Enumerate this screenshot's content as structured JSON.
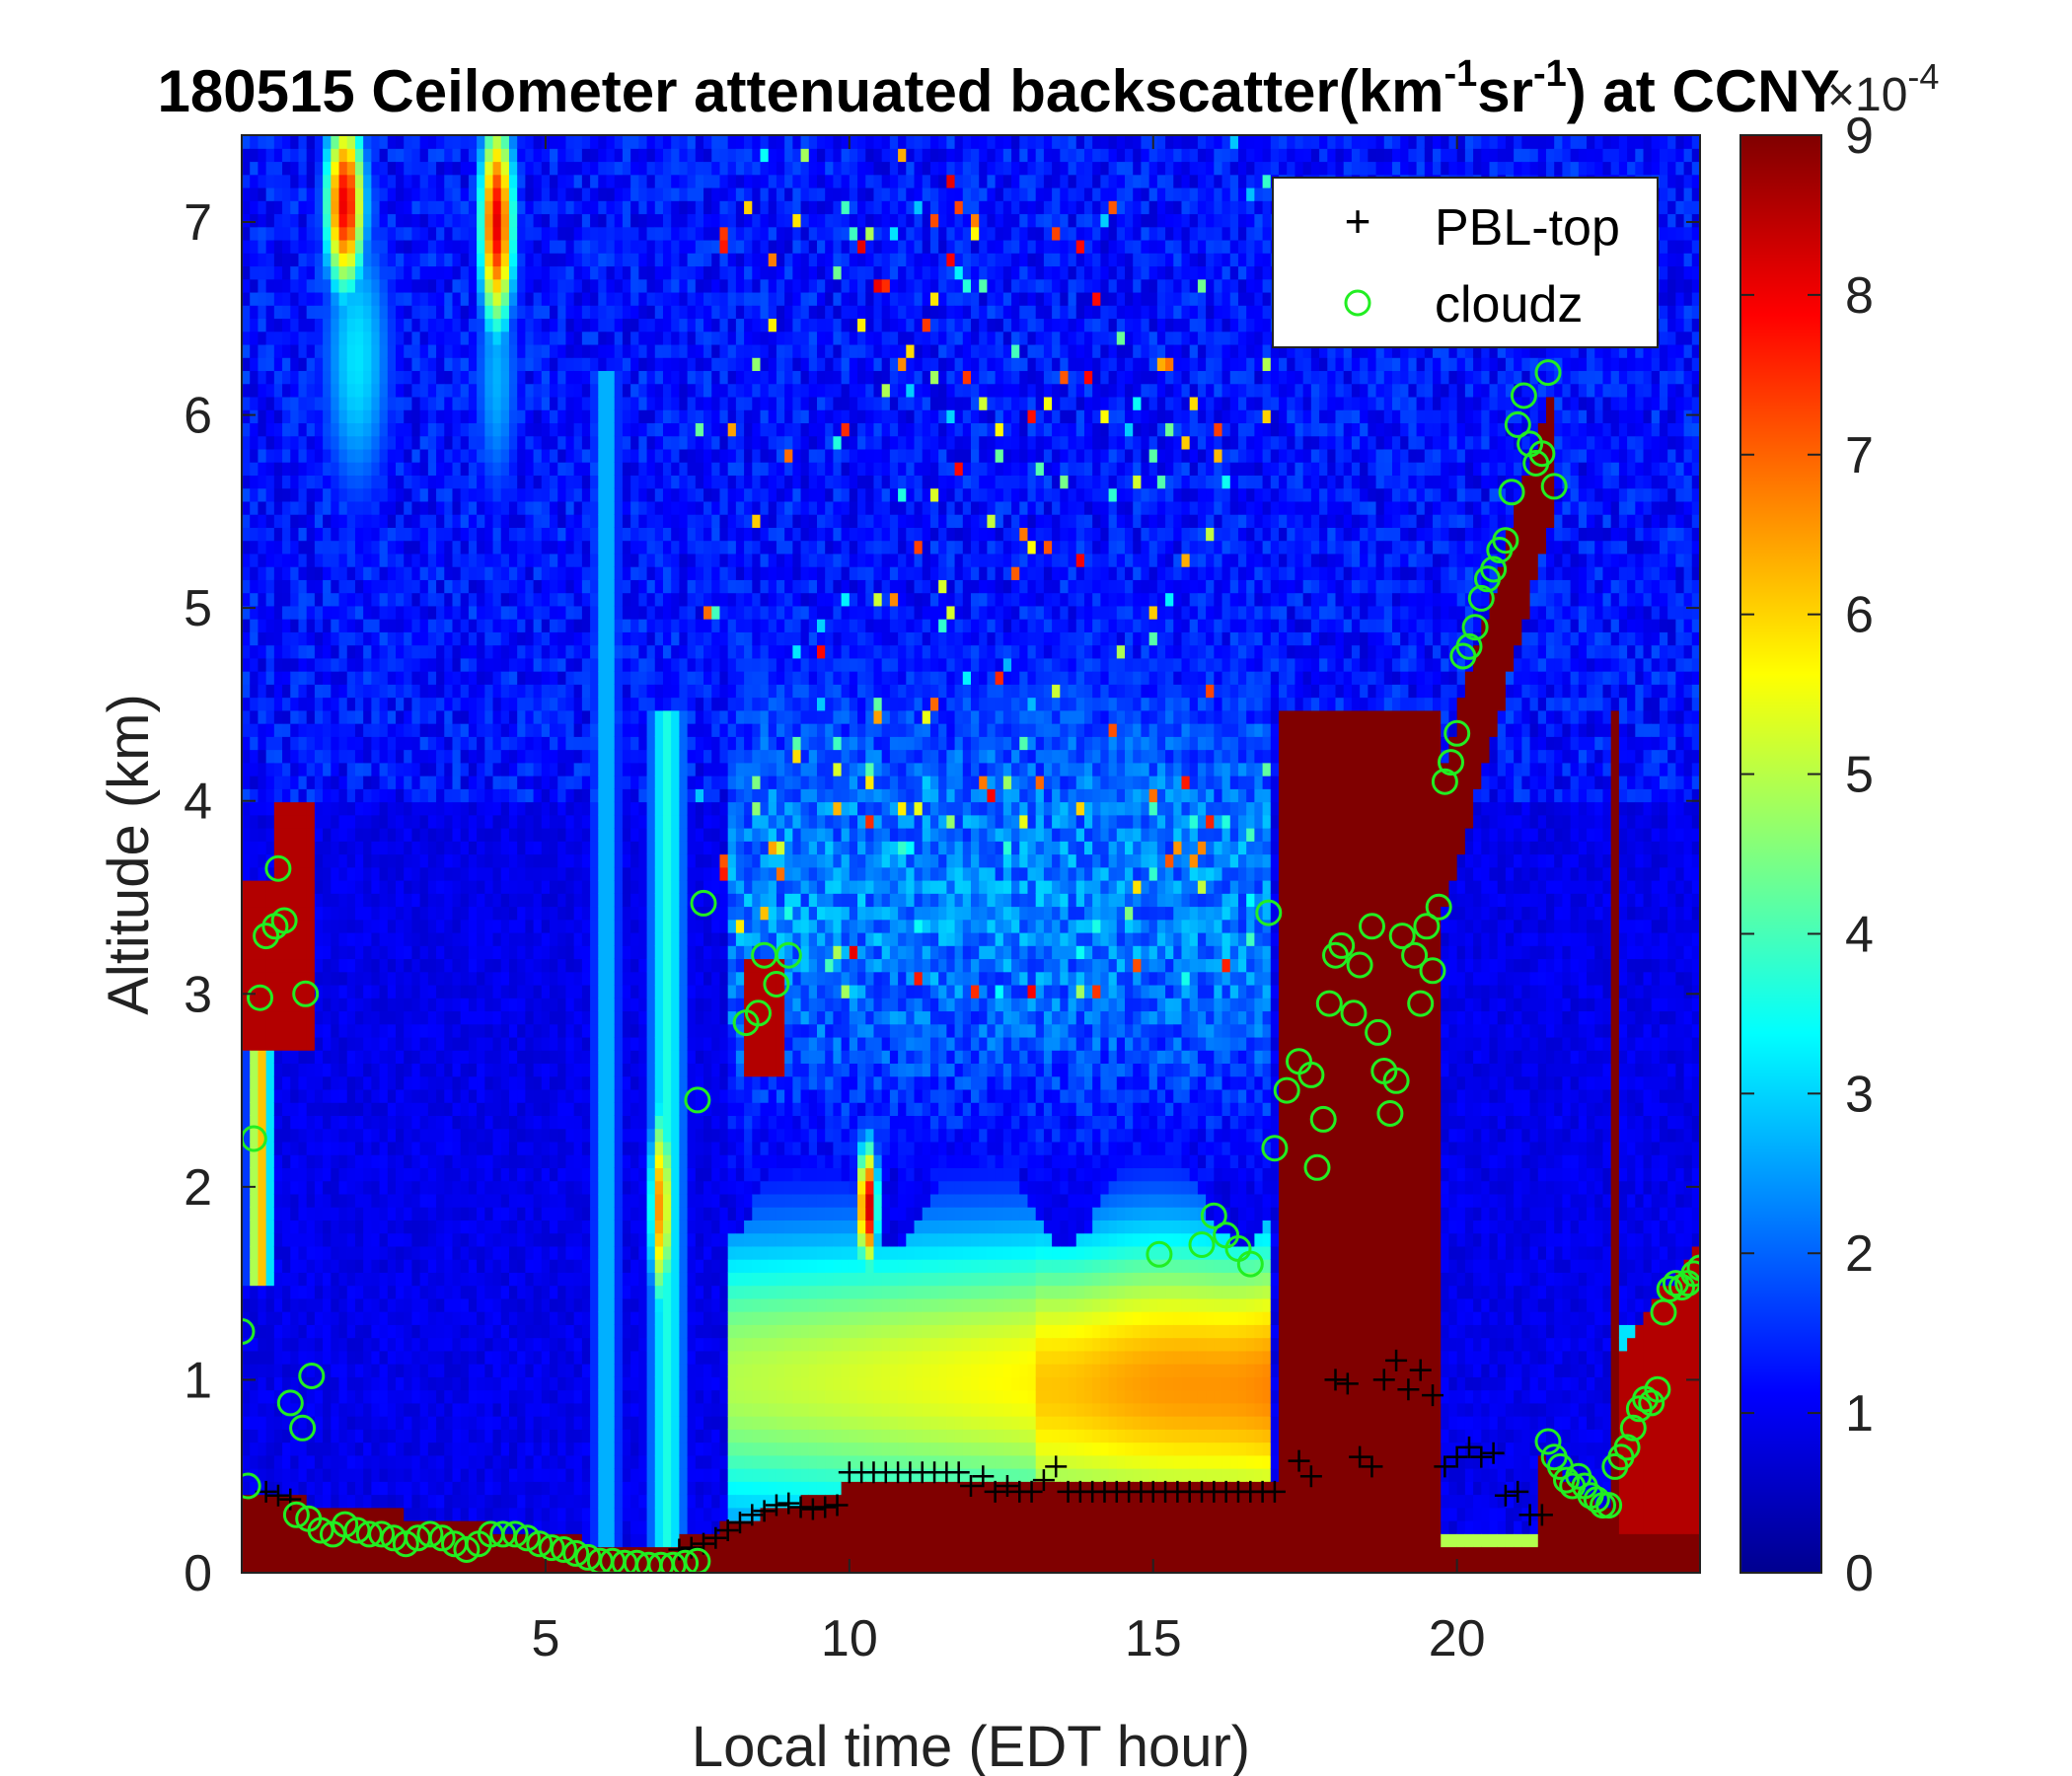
{
  "chart_data": {
    "type": "heatmap",
    "title_parts": {
      "prefix": "180515 Ceilometer attenuated backscatter(km",
      "sup1": "-1",
      "mid": "sr",
      "sup2": "-1",
      "suffix": ") at CCNY"
    },
    "xlabel": "Local time (EDT hour)",
    "ylabel": "Altitude (km)",
    "xlim": [
      0,
      24
    ],
    "ylim": [
      0,
      7.45
    ],
    "x_ticks": [
      5,
      10,
      15,
      20
    ],
    "y_ticks": [
      0,
      1,
      2,
      3,
      4,
      5,
      6,
      7
    ],
    "colorbar": {
      "colormap": "jet",
      "range": [
        0,
        9
      ],
      "ticks": [
        0,
        1,
        2,
        3,
        4,
        5,
        6,
        7,
        8,
        9
      ],
      "exponent_base": "×10",
      "exponent": "-4"
    },
    "legend": {
      "placement": "top-right",
      "entries": [
        {
          "label": "PBL-top",
          "marker": "+",
          "color": "#000000"
        },
        {
          "label": "cloudz",
          "marker": "o",
          "color": "#22ee22"
        }
      ]
    },
    "series": [
      {
        "name": "PBL-top",
        "marker": "+",
        "color": "#000000",
        "points": [
          [
            0.4,
            0.42
          ],
          [
            0.6,
            0.4
          ],
          [
            0.8,
            0.38
          ],
          [
            7.2,
            0.12
          ],
          [
            7.4,
            0.13
          ],
          [
            7.6,
            0.15
          ],
          [
            7.8,
            0.18
          ],
          [
            8.0,
            0.22
          ],
          [
            8.2,
            0.26
          ],
          [
            8.4,
            0.3
          ],
          [
            8.6,
            0.32
          ],
          [
            8.8,
            0.35
          ],
          [
            9.0,
            0.36
          ],
          [
            9.2,
            0.34
          ],
          [
            9.4,
            0.33
          ],
          [
            9.6,
            0.34
          ],
          [
            9.8,
            0.35
          ],
          [
            10.0,
            0.52
          ],
          [
            10.2,
            0.52
          ],
          [
            10.4,
            0.52
          ],
          [
            10.6,
            0.52
          ],
          [
            10.8,
            0.52
          ],
          [
            11.0,
            0.52
          ],
          [
            11.2,
            0.52
          ],
          [
            11.4,
            0.52
          ],
          [
            11.6,
            0.52
          ],
          [
            11.8,
            0.52
          ],
          [
            12.0,
            0.45
          ],
          [
            12.2,
            0.5
          ],
          [
            12.4,
            0.42
          ],
          [
            12.6,
            0.45
          ],
          [
            12.8,
            0.42
          ],
          [
            13.0,
            0.42
          ],
          [
            13.2,
            0.48
          ],
          [
            13.4,
            0.55
          ],
          [
            13.6,
            0.42
          ],
          [
            13.8,
            0.42
          ],
          [
            14.0,
            0.42
          ],
          [
            14.2,
            0.42
          ],
          [
            14.4,
            0.42
          ],
          [
            14.6,
            0.42
          ],
          [
            14.8,
            0.42
          ],
          [
            15.0,
            0.42
          ],
          [
            15.2,
            0.42
          ],
          [
            15.4,
            0.42
          ],
          [
            15.6,
            0.42
          ],
          [
            15.8,
            0.42
          ],
          [
            16.0,
            0.42
          ],
          [
            16.2,
            0.42
          ],
          [
            16.4,
            0.42
          ],
          [
            16.6,
            0.42
          ],
          [
            16.8,
            0.42
          ],
          [
            17.0,
            0.42
          ],
          [
            17.4,
            0.58
          ],
          [
            17.6,
            0.5
          ],
          [
            18.0,
            1.0
          ],
          [
            18.2,
            0.98
          ],
          [
            18.4,
            0.6
          ],
          [
            18.6,
            0.55
          ],
          [
            18.8,
            1.0
          ],
          [
            19.0,
            1.1
          ],
          [
            19.2,
            0.95
          ],
          [
            19.4,
            1.05
          ],
          [
            19.6,
            0.92
          ],
          [
            19.8,
            0.55
          ],
          [
            20.0,
            0.6
          ],
          [
            20.2,
            0.65
          ],
          [
            20.4,
            0.6
          ],
          [
            20.6,
            0.62
          ],
          [
            20.8,
            0.4
          ],
          [
            21.0,
            0.42
          ],
          [
            21.2,
            0.3
          ],
          [
            21.4,
            0.3
          ]
        ]
      },
      {
        "name": "cloudz",
        "marker": "o",
        "color": "#22ee22",
        "points": [
          [
            0.0,
            1.25
          ],
          [
            0.1,
            0.45
          ],
          [
            0.2,
            2.25
          ],
          [
            0.3,
            2.98
          ],
          [
            0.4,
            3.3
          ],
          [
            0.55,
            3.35
          ],
          [
            0.6,
            3.65
          ],
          [
            0.7,
            3.38
          ],
          [
            0.8,
            0.88
          ],
          [
            1.0,
            0.75
          ],
          [
            1.05,
            3.0
          ],
          [
            1.15,
            1.02
          ],
          [
            0.9,
            0.3
          ],
          [
            1.1,
            0.28
          ],
          [
            1.3,
            0.22
          ],
          [
            1.5,
            0.2
          ],
          [
            1.7,
            0.25
          ],
          [
            1.9,
            0.22
          ],
          [
            2.1,
            0.2
          ],
          [
            2.3,
            0.2
          ],
          [
            2.5,
            0.18
          ],
          [
            2.7,
            0.15
          ],
          [
            2.9,
            0.18
          ],
          [
            3.1,
            0.2
          ],
          [
            3.3,
            0.18
          ],
          [
            3.5,
            0.15
          ],
          [
            3.7,
            0.12
          ],
          [
            3.9,
            0.15
          ],
          [
            4.1,
            0.2
          ],
          [
            4.3,
            0.2
          ],
          [
            4.5,
            0.2
          ],
          [
            4.7,
            0.18
          ],
          [
            4.9,
            0.15
          ],
          [
            5.1,
            0.13
          ],
          [
            5.3,
            0.12
          ],
          [
            5.5,
            0.1
          ],
          [
            5.7,
            0.08
          ],
          [
            5.9,
            0.06
          ],
          [
            6.1,
            0.06
          ],
          [
            6.3,
            0.05
          ],
          [
            6.5,
            0.05
          ],
          [
            6.7,
            0.04
          ],
          [
            6.9,
            0.04
          ],
          [
            7.1,
            0.04
          ],
          [
            7.3,
            0.05
          ],
          [
            7.5,
            0.06
          ],
          [
            7.5,
            2.45
          ],
          [
            7.6,
            3.47
          ],
          [
            8.3,
            2.85
          ],
          [
            8.5,
            2.9
          ],
          [
            8.6,
            3.2
          ],
          [
            8.8,
            3.05
          ],
          [
            9.0,
            3.2
          ],
          [
            15.1,
            1.65
          ],
          [
            15.8,
            1.7
          ],
          [
            16.0,
            1.85
          ],
          [
            16.2,
            1.75
          ],
          [
            16.4,
            1.68
          ],
          [
            16.6,
            1.6
          ],
          [
            16.9,
            3.42
          ],
          [
            17.0,
            2.2
          ],
          [
            17.2,
            2.5
          ],
          [
            17.4,
            2.65
          ],
          [
            17.6,
            2.58
          ],
          [
            17.7,
            2.1
          ],
          [
            17.8,
            2.35
          ],
          [
            17.9,
            2.95
          ],
          [
            18.0,
            3.2
          ],
          [
            18.1,
            3.25
          ],
          [
            18.3,
            2.9
          ],
          [
            18.4,
            3.15
          ],
          [
            18.6,
            3.35
          ],
          [
            18.7,
            2.8
          ],
          [
            18.8,
            2.6
          ],
          [
            18.9,
            2.38
          ],
          [
            19.0,
            2.55
          ],
          [
            19.1,
            3.3
          ],
          [
            19.3,
            3.2
          ],
          [
            19.4,
            2.95
          ],
          [
            19.5,
            3.35
          ],
          [
            19.6,
            3.12
          ],
          [
            19.7,
            3.45
          ],
          [
            19.8,
            4.1
          ],
          [
            19.9,
            4.2
          ],
          [
            20.0,
            4.35
          ],
          [
            20.1,
            4.75
          ],
          [
            20.2,
            4.8
          ],
          [
            20.3,
            4.9
          ],
          [
            20.4,
            5.05
          ],
          [
            20.5,
            5.15
          ],
          [
            20.6,
            5.2
          ],
          [
            20.7,
            5.3
          ],
          [
            20.8,
            5.35
          ],
          [
            20.9,
            5.6
          ],
          [
            21.0,
            5.95
          ],
          [
            21.1,
            6.1
          ],
          [
            21.2,
            5.85
          ],
          [
            21.3,
            5.75
          ],
          [
            21.4,
            5.8
          ],
          [
            21.5,
            6.22
          ],
          [
            21.6,
            5.63
          ],
          [
            21.5,
            0.68
          ],
          [
            21.6,
            0.6
          ],
          [
            21.7,
            0.55
          ],
          [
            21.8,
            0.48
          ],
          [
            21.9,
            0.45
          ],
          [
            22.0,
            0.5
          ],
          [
            22.1,
            0.45
          ],
          [
            22.2,
            0.4
          ],
          [
            22.3,
            0.38
          ],
          [
            22.4,
            0.35
          ],
          [
            22.5,
            0.35
          ],
          [
            22.6,
            0.55
          ],
          [
            22.7,
            0.6
          ],
          [
            22.8,
            0.65
          ],
          [
            22.9,
            0.75
          ],
          [
            23.0,
            0.85
          ],
          [
            23.1,
            0.9
          ],
          [
            23.2,
            0.88
          ],
          [
            23.3,
            0.95
          ],
          [
            23.4,
            1.35
          ],
          [
            23.5,
            1.47
          ],
          [
            23.6,
            1.5
          ],
          [
            23.7,
            1.48
          ],
          [
            23.8,
            1.5
          ],
          [
            23.9,
            1.55
          ],
          [
            24.0,
            1.58
          ]
        ]
      }
    ]
  }
}
